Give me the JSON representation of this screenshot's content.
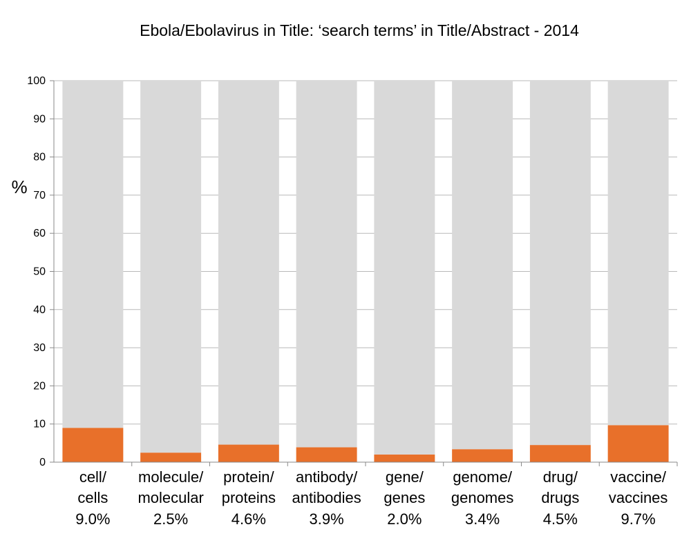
{
  "chart_data": {
    "type": "bar",
    "title": "Ebola/Ebolavirus in Title: ‘search terms’ in Title/Abstract - 2014",
    "ylabel": "%",
    "xlabel": "",
    "ylim": [
      0,
      100
    ],
    "yticks": [
      0,
      10,
      20,
      30,
      40,
      50,
      60,
      70,
      80,
      90,
      100
    ],
    "grid": true,
    "stacked": true,
    "categories": [
      {
        "line1": "cell/",
        "line2": "cells",
        "pct_label": "9.0%"
      },
      {
        "line1": "molecule/",
        "line2": "molecular",
        "pct_label": "2.5%"
      },
      {
        "line1": "protein/",
        "line2": "proteins",
        "pct_label": "4.6%"
      },
      {
        "line1": "antibody/",
        "line2": "antibodies",
        "pct_label": "3.9%"
      },
      {
        "line1": "gene/",
        "line2": "genes",
        "pct_label": "2.0%"
      },
      {
        "line1": "genome/",
        "line2": "genomes",
        "pct_label": "3.4%"
      },
      {
        "line1": "drug/",
        "line2": "drugs",
        "pct_label": "4.5%"
      },
      {
        "line1": "vaccine/",
        "line2": "vaccines",
        "pct_label": "9.7%"
      }
    ],
    "series": [
      {
        "values": [
          9.0,
          2.5,
          4.6,
          3.9,
          2.0,
          3.4,
          4.5,
          9.7
        ],
        "color": "#E8702A"
      },
      {
        "values": [
          91.0,
          97.5,
          95.4,
          96.1,
          98.0,
          96.6,
          95.5,
          90.3
        ],
        "color": "#D9D9D9"
      }
    ]
  }
}
